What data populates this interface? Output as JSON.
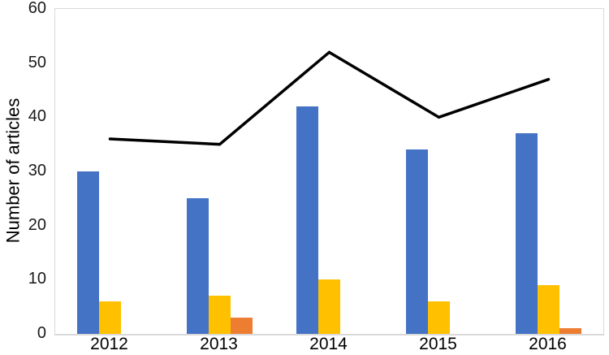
{
  "chart_data": {
    "type": "bar",
    "subtype": "clustered-bars-with-line-overlay",
    "title": "",
    "xlabel": "",
    "ylabel": "Number of articles",
    "ylim": [
      0,
      60
    ],
    "yticks": [
      0,
      10,
      20,
      30,
      40,
      50,
      60
    ],
    "grid": false,
    "legend": "none",
    "categories": [
      "2012",
      "2013",
      "2014",
      "2015",
      "2016"
    ],
    "series": [
      {
        "name": "blue-bars",
        "type": "bar",
        "color": "#4472C4",
        "values": [
          30,
          25,
          42,
          34,
          37
        ]
      },
      {
        "name": "yellow-bars",
        "type": "bar",
        "color": "#FFC000",
        "values": [
          6,
          7,
          10,
          6,
          9
        ]
      },
      {
        "name": "orange-bars",
        "type": "bar",
        "color": "#ED7D31",
        "values": [
          0,
          3,
          0,
          0,
          1
        ]
      },
      {
        "name": "trend-line",
        "type": "line",
        "color": "#000000",
        "values": [
          36,
          35,
          52,
          40,
          47
        ]
      }
    ]
  }
}
